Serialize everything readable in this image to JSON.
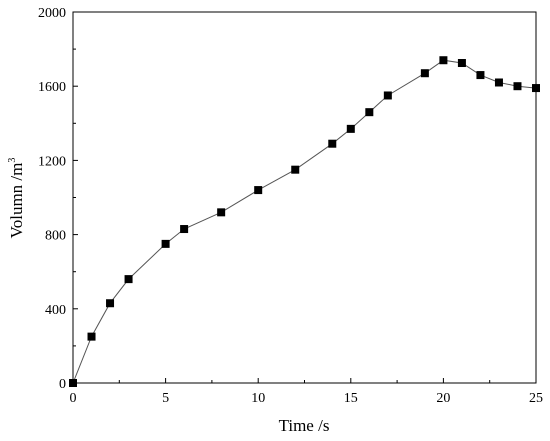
{
  "chart_data": {
    "type": "line",
    "title": "",
    "xlabel": "Time /s",
    "ylabel_main": "Volumn /m",
    "ylabel_sup": "3",
    "xlim": [
      0,
      25
    ],
    "ylim": [
      0,
      2000
    ],
    "xticks": [
      0,
      5,
      10,
      15,
      20,
      25
    ],
    "yticks": [
      0,
      400,
      800,
      1200,
      1600,
      2000
    ],
    "grid": false,
    "marker": "square",
    "line_color": "#555555",
    "marker_color": "#000000",
    "series": [
      {
        "x": [
          0,
          1,
          2,
          3,
          5,
          6,
          8,
          10,
          12,
          14,
          15,
          16,
          17,
          19,
          20,
          21,
          22,
          23,
          24,
          25
        ],
        "values": [
          0,
          250,
          430,
          560,
          750,
          830,
          920,
          1040,
          1150,
          1290,
          1370,
          1460,
          1550,
          1670,
          1740,
          1725,
          1660,
          1620,
          1600,
          1590
        ]
      }
    ]
  }
}
